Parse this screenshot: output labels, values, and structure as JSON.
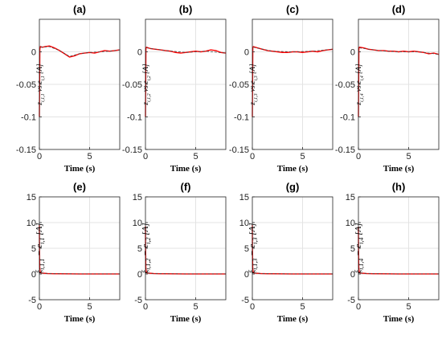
{
  "chart_data": [
    {
      "panel": "(a)",
      "type": "line",
      "xlabel": "Time (s)",
      "ylabel": "z_{i,1,1} vs e_{i,1} [A]",
      "xlim": [
        0,
        8
      ],
      "ylim": [
        -0.15,
        0.05
      ],
      "xticks": [
        0,
        5
      ],
      "yticks": [
        0,
        -0.05,
        -0.1,
        -0.15
      ],
      "ytick_labels": [
        "0",
        "-0.05",
        "-0.1",
        "-0.15"
      ],
      "xtick_labels": [
        "0",
        "5"
      ],
      "grid": true,
      "series": [
        {
          "color": "#ff0000",
          "x": [
            0,
            0.02,
            0.05,
            0.1,
            0.3,
            0.6,
            1.0,
            1.5,
            2.0,
            2.5,
            3.0,
            3.5,
            4.0,
            4.5,
            5.0,
            5.5,
            6.0,
            6.5,
            7.0,
            7.5,
            8.0
          ],
          "y": [
            -0.1,
            -0.05,
            0.005,
            0.008,
            0.007,
            0.008,
            0.009,
            0.006,
            0.002,
            -0.003,
            -0.008,
            -0.006,
            -0.003,
            -0.002,
            -0.001,
            -0.002,
            0.0,
            0.002,
            0.001,
            0.002,
            0.003
          ]
        },
        {
          "color": "#444444",
          "x": [
            0.1,
            1.0,
            2.0,
            3.0,
            4.0,
            5.0,
            6.0,
            7.0,
            8.0
          ],
          "y": [
            0.007,
            0.008,
            0.002,
            -0.007,
            -0.003,
            -0.001,
            0.0,
            0.001,
            0.003
          ]
        }
      ]
    },
    {
      "panel": "(b)",
      "type": "line",
      "xlabel": "Time (s)",
      "ylabel": "z_{i,1,2} vs e_{i,2} [A]",
      "xlim": [
        0,
        8
      ],
      "ylim": [
        -0.15,
        0.05
      ],
      "xticks": [
        0,
        5
      ],
      "yticks": [
        0,
        -0.05,
        -0.1,
        -0.15
      ],
      "ytick_labels": [
        "0",
        "-0.05",
        "-0.1",
        "-0.15"
      ],
      "xtick_labels": [
        "0",
        "5"
      ],
      "grid": true,
      "series": [
        {
          "color": "#ff0000",
          "x": [
            0,
            0.02,
            0.05,
            0.1,
            0.5,
            1.0,
            1.5,
            2.0,
            2.5,
            3.0,
            3.5,
            4.0,
            4.5,
            5.0,
            5.5,
            6.0,
            6.5,
            7.0,
            7.5,
            8.0
          ],
          "y": [
            -0.1,
            -0.05,
            0.006,
            0.007,
            0.005,
            0.004,
            0.003,
            0.002,
            0.001,
            -0.001,
            -0.002,
            -0.001,
            0.0,
            0.001,
            0.0,
            0.001,
            0.003,
            0.002,
            -0.001,
            -0.002
          ]
        },
        {
          "color": "#444444",
          "x": [
            0.1,
            2.0,
            4.0,
            6.0,
            8.0
          ],
          "y": [
            0.006,
            0.002,
            -0.001,
            0.001,
            -0.002
          ]
        }
      ]
    },
    {
      "panel": "(c)",
      "type": "line",
      "xlabel": "Time (s)",
      "ylabel": "z_{i,1,3} vs e_{i,3} [A]",
      "xlim": [
        0,
        8
      ],
      "ylim": [
        -0.15,
        0.05
      ],
      "xticks": [
        0,
        5
      ],
      "yticks": [
        0,
        -0.05,
        -0.1,
        -0.15
      ],
      "ytick_labels": [
        "0",
        "-0.05",
        "-0.1",
        "-0.15"
      ],
      "xtick_labels": [
        "0",
        "5"
      ],
      "grid": true,
      "series": [
        {
          "color": "#ff0000",
          "x": [
            0,
            0.02,
            0.05,
            0.1,
            0.5,
            1.0,
            1.5,
            2.0,
            2.5,
            3.0,
            3.5,
            4.0,
            4.5,
            5.0,
            5.5,
            6.0,
            6.5,
            7.0,
            7.5,
            8.0
          ],
          "y": [
            -0.1,
            -0.05,
            0.007,
            0.008,
            0.006,
            0.004,
            0.002,
            0.001,
            0.0,
            -0.001,
            -0.001,
            0.0,
            0.0,
            -0.001,
            0.0,
            0.001,
            0.0,
            0.002,
            0.003,
            0.004
          ]
        },
        {
          "color": "#444444",
          "x": [
            0.1,
            2.0,
            4.0,
            6.0,
            8.0
          ],
          "y": [
            0.007,
            0.001,
            0.0,
            0.001,
            0.004
          ]
        }
      ]
    },
    {
      "panel": "(d)",
      "type": "line",
      "xlabel": "Time (s)",
      "ylabel": "z_{i,1,4} vs e_{i,4} [A]",
      "xlim": [
        0,
        8
      ],
      "ylim": [
        -0.15,
        0.05
      ],
      "xticks": [
        0,
        5
      ],
      "yticks": [
        0,
        -0.05,
        -0.1,
        -0.15
      ],
      "ytick_labels": [
        "0",
        "-0.05",
        "-0.1",
        "-0.15"
      ],
      "xtick_labels": [
        "0",
        "5"
      ],
      "grid": true,
      "series": [
        {
          "color": "#ff0000",
          "x": [
            0,
            0.02,
            0.05,
            0.1,
            0.5,
            1.0,
            1.5,
            2.0,
            2.5,
            3.0,
            3.5,
            4.0,
            4.5,
            5.0,
            5.5,
            6.0,
            6.5,
            7.0,
            7.5,
            8.0
          ],
          "y": [
            -0.1,
            -0.05,
            0.006,
            0.007,
            0.006,
            0.004,
            0.003,
            0.002,
            0.002,
            0.001,
            0.001,
            0.0,
            0.001,
            0.0,
            0.001,
            0.0,
            -0.001,
            -0.003,
            -0.002,
            -0.004
          ]
        },
        {
          "color": "#444444",
          "x": [
            0.1,
            2.0,
            4.0,
            6.0,
            8.0
          ],
          "y": [
            0.006,
            0.002,
            0.0,
            0.0,
            -0.004
          ]
        }
      ]
    },
    {
      "panel": "(e)",
      "type": "line",
      "xlabel": "Time (s)",
      "ylabel": "ξ_{i,1,1} − e_{i,1} [A]",
      "xlim": [
        0,
        8
      ],
      "ylim": [
        -5,
        15
      ],
      "xticks": [
        0,
        5
      ],
      "yticks": [
        -5,
        0,
        5,
        10,
        15
      ],
      "ytick_labels": [
        "-5",
        "0",
        "5",
        "10",
        "15"
      ],
      "xtick_labels": [
        "0",
        "5"
      ],
      "grid": true,
      "series": [
        {
          "color": "#ff0000",
          "x": [
            0,
            0.01,
            0.03,
            0.06,
            0.1,
            0.2,
            0.4,
            0.8,
            1.5,
            2,
            3,
            4,
            5,
            6,
            7,
            8
          ],
          "y": [
            9.5,
            5.0,
            1.5,
            0.6,
            0.3,
            0.2,
            0.15,
            0.1,
            0.05,
            0.04,
            0.03,
            0.02,
            0.02,
            0.01,
            0.01,
            0.01
          ]
        },
        {
          "color": "#444444",
          "x": [
            0.2,
            1,
            2,
            4,
            6,
            8
          ],
          "y": [
            0.2,
            0.08,
            0.04,
            0.02,
            0.01,
            0.01
          ]
        }
      ]
    },
    {
      "panel": "(f)",
      "type": "line",
      "xlabel": "Time (s)",
      "ylabel": "ξ_{i,1,2} − e_{i,2} [A]",
      "xlim": [
        0,
        8
      ],
      "ylim": [
        -5,
        15
      ],
      "xticks": [
        0,
        5
      ],
      "yticks": [
        -5,
        0,
        5,
        10,
        15
      ],
      "ytick_labels": [
        "-5",
        "0",
        "5",
        "10",
        "15"
      ],
      "xtick_labels": [
        "0",
        "5"
      ],
      "grid": true,
      "series": [
        {
          "color": "#ff0000",
          "x": [
            0,
            0.01,
            0.03,
            0.06,
            0.1,
            0.2,
            0.4,
            0.8,
            1.5,
            2,
            3,
            4,
            5,
            6,
            7,
            8
          ],
          "y": [
            9.3,
            5.0,
            1.5,
            0.6,
            0.3,
            0.2,
            0.15,
            0.1,
            0.05,
            0.04,
            0.03,
            0.02,
            0.02,
            0.01,
            0.01,
            0.01
          ]
        },
        {
          "color": "#444444",
          "x": [
            0.2,
            1,
            2,
            4,
            6,
            8
          ],
          "y": [
            0.2,
            0.08,
            0.04,
            0.02,
            0.01,
            0.01
          ]
        }
      ]
    },
    {
      "panel": "(g)",
      "type": "line",
      "xlabel": "Time (s)",
      "ylabel": "ξ_{i,1,3} − e_{i,3} [A]",
      "xlim": [
        0,
        8
      ],
      "ylim": [
        -5,
        15
      ],
      "xticks": [
        0,
        5
      ],
      "yticks": [
        -5,
        0,
        5,
        10,
        15
      ],
      "ytick_labels": [
        "-5",
        "0",
        "5",
        "10",
        "15"
      ],
      "xtick_labels": [
        "0",
        "5"
      ],
      "grid": true,
      "series": [
        {
          "color": "#ff0000",
          "x": [
            0,
            0.01,
            0.03,
            0.06,
            0.1,
            0.2,
            0.4,
            0.8,
            1.5,
            2,
            3,
            4,
            5,
            6,
            7,
            8
          ],
          "y": [
            9.5,
            5.0,
            1.5,
            0.6,
            0.3,
            0.2,
            0.15,
            0.1,
            0.05,
            0.04,
            0.03,
            0.02,
            0.02,
            0.01,
            0.01,
            0.01
          ]
        },
        {
          "color": "#444444",
          "x": [
            0.2,
            1,
            2,
            4,
            6,
            8
          ],
          "y": [
            0.2,
            0.08,
            0.04,
            0.02,
            0.01,
            0.01
          ]
        }
      ]
    },
    {
      "panel": "(h)",
      "type": "line",
      "xlabel": "Time (s)",
      "ylabel": "ξ_{i,1,4} − e_{i,4} [A]",
      "xlim": [
        0,
        8
      ],
      "ylim": [
        -5,
        15
      ],
      "xticks": [
        0,
        5
      ],
      "yticks": [
        -5,
        0,
        5,
        10,
        15
      ],
      "ytick_labels": [
        "-5",
        "0",
        "5",
        "10",
        "15"
      ],
      "xtick_labels": [
        "0",
        "5"
      ],
      "grid": true,
      "series": [
        {
          "color": "#ff0000",
          "x": [
            0,
            0.01,
            0.03,
            0.06,
            0.1,
            0.2,
            0.4,
            0.8,
            1.5,
            2,
            3,
            4,
            5,
            6,
            7,
            8
          ],
          "y": [
            9.2,
            5.0,
            1.5,
            0.6,
            0.3,
            0.2,
            0.15,
            0.1,
            0.05,
            0.04,
            0.03,
            0.02,
            0.02,
            0.01,
            0.01,
            0.01
          ]
        },
        {
          "color": "#444444",
          "x": [
            0.2,
            1,
            2,
            4,
            6,
            8
          ],
          "y": [
            0.2,
            0.08,
            0.04,
            0.02,
            0.01,
            0.01
          ]
        }
      ]
    }
  ]
}
